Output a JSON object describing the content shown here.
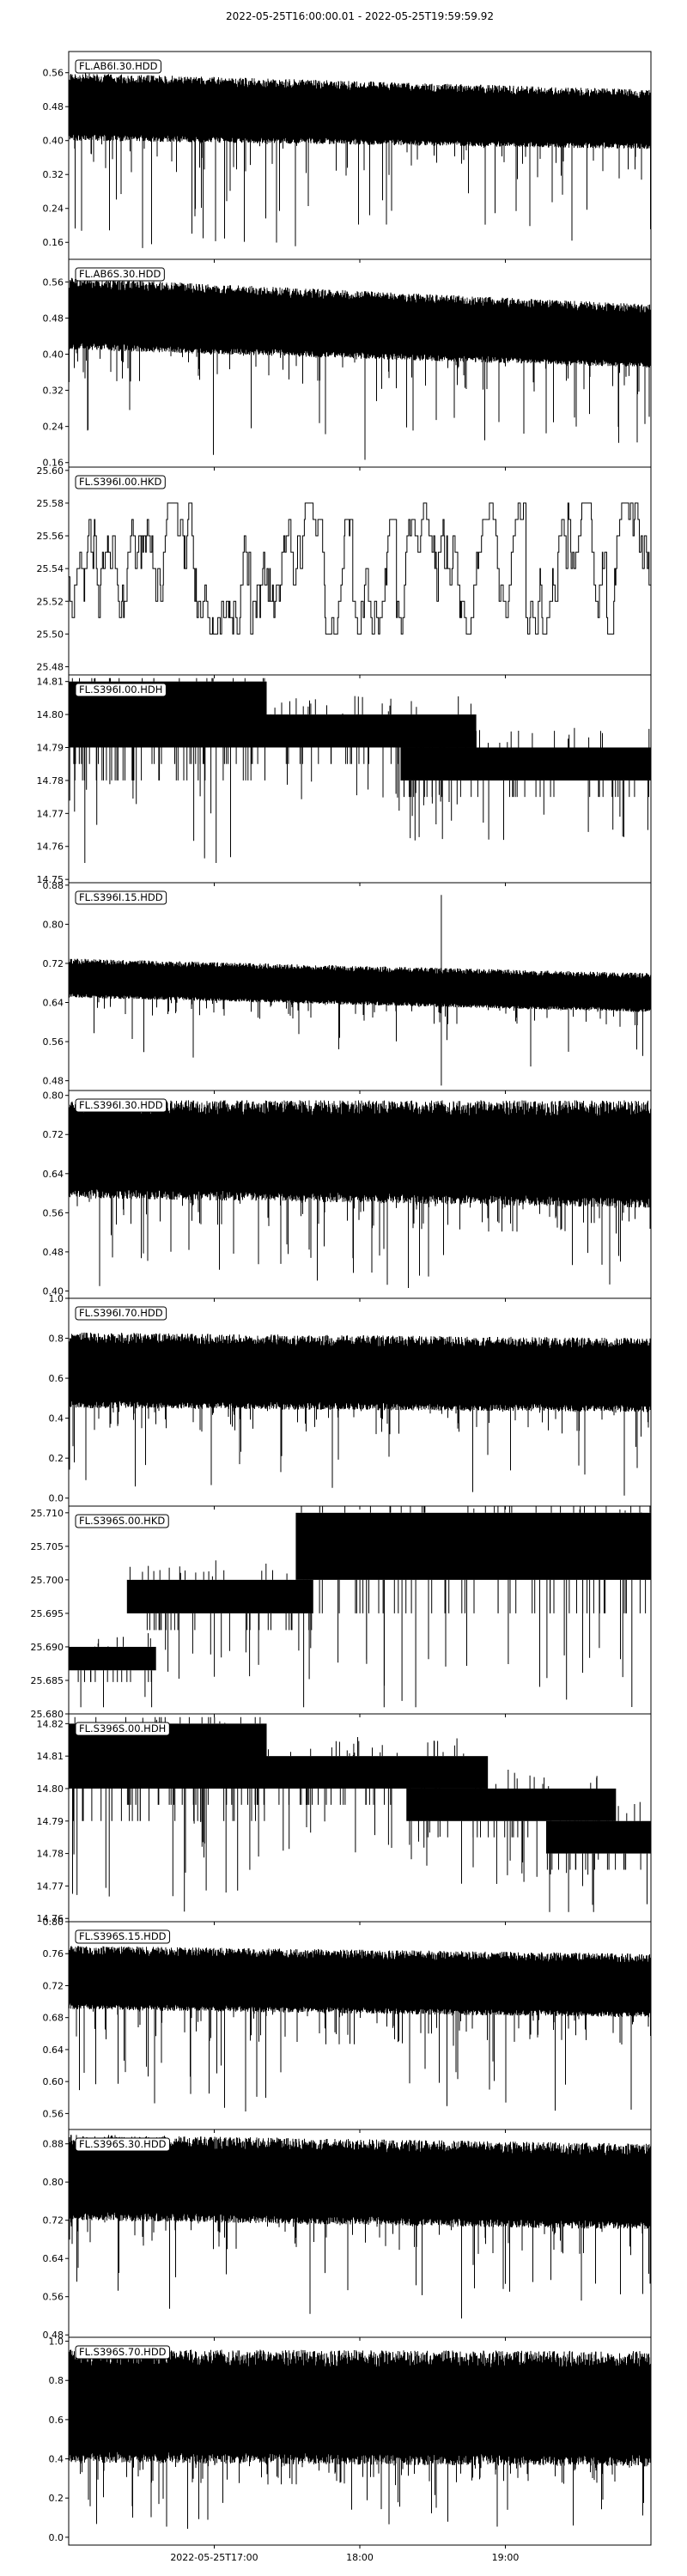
{
  "figure": {
    "title": "2022-05-25T16:00:00.01  -  2022-05-25T19:59:59.92"
  },
  "chart_data": {
    "type": "line",
    "x_range": [
      "2022-05-25T16:00:00.01",
      "2022-05-25T19:59:59.92"
    ],
    "x_ticks": [
      {
        "time": "2022-05-25T17:00",
        "label": "2022-05-25T17:00"
      },
      {
        "time": "2022-05-25T18:00",
        "label": "18:00"
      },
      {
        "time": "2022-05-25T19:00",
        "label": "19:00"
      }
    ],
    "grid": false,
    "traces": [
      {
        "name": "FL.AB6I.30.HDD",
        "ylim": [
          0.12,
          0.61
        ],
        "ticks": [
          "0.56",
          "0.48",
          "0.40",
          "0.32",
          "0.24",
          "0.16"
        ],
        "style": "noisy",
        "top": [
          0.56,
          0.52
        ],
        "base": [
          0.4,
          0.38
        ],
        "dip": [
          0.15,
          0.12
        ],
        "dense": 0.9
      },
      {
        "name": "FL.AB6S.30.HDD",
        "ylim": [
          0.15,
          0.61
        ],
        "ticks": [
          "0.56",
          "0.48",
          "0.40",
          "0.32",
          "0.24",
          "0.16"
        ],
        "style": "noisy",
        "top": [
          0.57,
          0.51
        ],
        "base": [
          0.41,
          0.37
        ],
        "dip": [
          0.17,
          0.16
        ],
        "dense": 0.8
      },
      {
        "name": "FL.S396I.00.HKD",
        "ylim": [
          25.475,
          25.602
        ],
        "ticks": [
          "25.60",
          "25.58",
          "25.56",
          "25.54",
          "25.52",
          "25.50",
          "25.48"
        ],
        "style": "step",
        "levels": [
          25.49,
          25.5,
          25.51,
          25.52,
          25.53,
          25.54,
          25.55,
          25.56,
          25.57,
          25.58,
          25.59
        ],
        "center": 25.535
      },
      {
        "name": "FL.S396I.00.HDH",
        "ylim": [
          14.749,
          14.812
        ],
        "ticks": [
          "14.81",
          "14.80",
          "14.79",
          "14.78",
          "14.77",
          "14.76",
          "14.75"
        ],
        "style": "bands",
        "bands": [
          {
            "x0": 0.0,
            "x1": 0.34,
            "y0": 14.79,
            "y1": 14.81
          },
          {
            "x0": 0.0,
            "x1": 0.7,
            "y0": 14.79,
            "y1": 14.8
          },
          {
            "x0": 0.57,
            "x1": 1.0,
            "y0": 14.78,
            "y1": 14.79
          }
        ],
        "spikes": {
          "up": 14.811,
          "down": 14.755
        }
      },
      {
        "name": "FL.S396I.15.HDD",
        "ylim": [
          0.46,
          0.885
        ],
        "ticks": [
          "0.88",
          "0.80",
          "0.72",
          "0.64",
          "0.56",
          "0.48"
        ],
        "style": "noisy",
        "top": [
          0.73,
          0.7
        ],
        "base": [
          0.65,
          0.62
        ],
        "dip": [
          0.52,
          0.5
        ],
        "dense": 0.7,
        "spike": {
          "x": 0.64,
          "y": 0.86,
          "ydown": 0.47
        }
      },
      {
        "name": "FL.S396I.30.HDD",
        "ylim": [
          0.385,
          0.81
        ],
        "ticks": [
          "0.80",
          "0.72",
          "0.64",
          "0.56",
          "0.48",
          "0.40"
        ],
        "style": "noisy",
        "top": [
          0.79,
          0.79
        ],
        "base": [
          0.59,
          0.57
        ],
        "dip": [
          0.41,
          0.39
        ],
        "dense": 0.9
      },
      {
        "name": "FL.S396I.70.HDD",
        "ylim": [
          -0.04,
          1.0
        ],
        "ticks": [
          "1.0",
          "0.8",
          "0.6",
          "0.4",
          "0.2",
          "0.0"
        ],
        "style": "noisy",
        "top": [
          0.83,
          0.8
        ],
        "base": [
          0.45,
          0.43
        ],
        "dip": [
          0.02,
          0.01
        ],
        "dense": 0.9
      },
      {
        "name": "FL.S396S.00.HKD",
        "ylim": [
          25.68,
          25.711
        ],
        "ticks": [
          "25.710",
          "25.705",
          "25.700",
          "25.695",
          "25.690",
          "25.685",
          "25.680"
        ],
        "style": "bands",
        "bands": [
          {
            "x0": 0.0,
            "x1": 0.15,
            "y0": 25.6865,
            "y1": 25.69
          },
          {
            "x0": 0.1,
            "x1": 0.42,
            "y0": 25.695,
            "y1": 25.7
          },
          {
            "x0": 0.39,
            "x1": 1.0,
            "y0": 25.7,
            "y1": 25.71
          }
        ],
        "spikes": {
          "up": 25.711,
          "down": 25.681
        }
      },
      {
        "name": "FL.S396S.00.HDH",
        "ylim": [
          14.759,
          14.823
        ],
        "ticks": [
          "14.82",
          "14.81",
          "14.80",
          "14.79",
          "14.78",
          "14.77",
          "14.76"
        ],
        "style": "bands",
        "bands": [
          {
            "x0": 0.0,
            "x1": 0.34,
            "y0": 14.8,
            "y1": 14.82
          },
          {
            "x0": 0.1,
            "x1": 0.72,
            "y0": 14.8,
            "y1": 14.81
          },
          {
            "x0": 0.58,
            "x1": 0.94,
            "y0": 14.79,
            "y1": 14.8
          },
          {
            "x0": 0.82,
            "x1": 1.0,
            "y0": 14.78,
            "y1": 14.79
          }
        ],
        "spikes": {
          "up": 14.822,
          "down": 14.762
        }
      },
      {
        "name": "FL.S396S.15.HDD",
        "ylim": [
          0.54,
          0.8
        ],
        "ticks": [
          "0.80",
          "0.76",
          "0.72",
          "0.68",
          "0.64",
          "0.60",
          "0.56"
        ],
        "style": "noisy",
        "top": [
          0.77,
          0.76
        ],
        "base": [
          0.69,
          0.68
        ],
        "dip": [
          0.56,
          0.55
        ],
        "dense": 0.9
      },
      {
        "name": "FL.S396S.30.HDD",
        "ylim": [
          0.475,
          0.91
        ],
        "ticks": [
          "0.88",
          "0.80",
          "0.72",
          "0.64",
          "0.56",
          "0.48"
        ],
        "style": "noisy",
        "top": [
          0.9,
          0.88
        ],
        "base": [
          0.72,
          0.7
        ],
        "dip": [
          0.52,
          0.51
        ],
        "dense": 0.9
      },
      {
        "name": "FL.S396S.70.HDD",
        "ylim": [
          -0.04,
          1.02
        ],
        "ticks": [
          "1.0",
          "0.8",
          "0.6",
          "0.4",
          "0.2",
          "0.0"
        ],
        "style": "noisy",
        "top": [
          0.96,
          0.95
        ],
        "base": [
          0.38,
          0.36
        ],
        "dip": [
          0.03,
          0.02
        ],
        "dense": 0.9
      }
    ]
  }
}
